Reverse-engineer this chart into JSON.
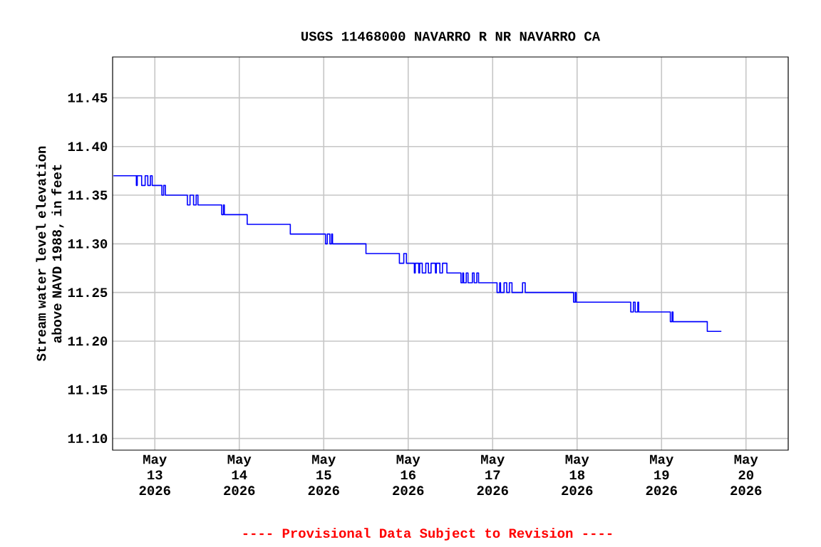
{
  "chart_data": {
    "type": "step",
    "title": "USGS 11468000 NAVARRO R NR NAVARRO CA",
    "ylabel": "Stream water level elevation above NAVD 1988, in feet",
    "annotations": [
      "---- Provisional Data Subject to Revision ----"
    ],
    "x": [
      "2026-05-12T12:15",
      "2026-05-12T18:45",
      "2026-05-12T19:00",
      "2026-05-12T20:15",
      "2026-05-12T21:15",
      "2026-05-12T22:00",
      "2026-05-12T22:45",
      "2026-05-12T23:15",
      "2026-05-13T02:00",
      "2026-05-13T02:30",
      "2026-05-13T03:00",
      "2026-05-13T09:15",
      "2026-05-13T10:00",
      "2026-05-13T11:00",
      "2026-05-13T11:45",
      "2026-05-13T12:15",
      "2026-05-13T19:00",
      "2026-05-13T19:30",
      "2026-05-13T19:45",
      "2026-05-14T02:15",
      "2026-05-14T14:30",
      "2026-05-15T00:30",
      "2026-05-15T01:00",
      "2026-05-15T01:45",
      "2026-05-15T02:15",
      "2026-05-15T02:30",
      "2026-05-15T12:00",
      "2026-05-15T21:30",
      "2026-05-15T22:45",
      "2026-05-15T23:30",
      "2026-05-16T01:45",
      "2026-05-16T02:00",
      "2026-05-16T03:00",
      "2026-05-16T03:15",
      "2026-05-16T04:00",
      "2026-05-16T05:00",
      "2026-05-16T05:45",
      "2026-05-16T06:30",
      "2026-05-16T07:45",
      "2026-05-16T08:00",
      "2026-05-16T09:00",
      "2026-05-16T09:45",
      "2026-05-16T11:00",
      "2026-05-16T15:00",
      "2026-05-16T15:30",
      "2026-05-16T15:45",
      "2026-05-16T16:30",
      "2026-05-16T17:00",
      "2026-05-16T18:15",
      "2026-05-16T18:45",
      "2026-05-16T19:30",
      "2026-05-16T20:00",
      "2026-05-17T01:15",
      "2026-05-17T02:00",
      "2026-05-17T02:15",
      "2026-05-17T03:15",
      "2026-05-17T04:00",
      "2026-05-17T04:45",
      "2026-05-17T05:30",
      "2026-05-17T08:30",
      "2026-05-17T09:15",
      "2026-05-17T23:00",
      "2026-05-17T23:30",
      "2026-05-17T23:45",
      "2026-05-18T15:15",
      "2026-05-18T16:00",
      "2026-05-18T16:30",
      "2026-05-18T17:15",
      "2026-05-18T17:30",
      "2026-05-19T02:30",
      "2026-05-19T03:00",
      "2026-05-19T03:15",
      "2026-05-19T13:00",
      "2026-05-19T17:00"
    ],
    "series": [
      {
        "color": "#0000ff",
        "values": [
          11.37,
          11.36,
          11.37,
          11.36,
          11.37,
          11.36,
          11.37,
          11.36,
          11.35,
          11.36,
          11.35,
          11.34,
          11.35,
          11.34,
          11.35,
          11.34,
          11.33,
          11.34,
          11.33,
          11.32,
          11.31,
          11.3,
          11.31,
          11.3,
          11.31,
          11.3,
          11.29,
          11.28,
          11.29,
          11.28,
          11.27,
          11.28,
          11.27,
          11.28,
          11.27,
          11.28,
          11.27,
          11.28,
          11.27,
          11.28,
          11.27,
          11.28,
          11.27,
          11.26,
          11.27,
          11.26,
          11.27,
          11.26,
          11.27,
          11.26,
          11.27,
          11.26,
          11.25,
          11.26,
          11.25,
          11.26,
          11.25,
          11.26,
          11.25,
          11.26,
          11.25,
          11.24,
          11.25,
          11.24,
          11.23,
          11.24,
          11.23,
          11.24,
          11.23,
          11.22,
          11.23,
          11.22,
          11.21,
          11.21
        ]
      }
    ],
    "xlim": [
      "2026-05-12T12:00",
      "2026-05-20T12:00"
    ],
    "xticks": [
      {
        "value": "2026-05-13",
        "label": "May 13 2026"
      },
      {
        "value": "2026-05-14",
        "label": "May 14 2026"
      },
      {
        "value": "2026-05-15",
        "label": "May 15 2026"
      },
      {
        "value": "2026-05-16",
        "label": "May 16 2026"
      },
      {
        "value": "2026-05-17",
        "label": "May 17 2026"
      },
      {
        "value": "2026-05-18",
        "label": "May 18 2026"
      },
      {
        "value": "2026-05-19",
        "label": "May 19 2026"
      },
      {
        "value": "2026-05-20",
        "label": "May 20 2026"
      }
    ],
    "ylim": [
      11.088,
      11.492
    ],
    "yticks": [
      {
        "value": 11.1,
        "label": "11.10"
      },
      {
        "value": 11.15,
        "label": "11.15"
      },
      {
        "value": 11.2,
        "label": "11.20"
      },
      {
        "value": 11.25,
        "label": "11.25"
      },
      {
        "value": 11.3,
        "label": "11.30"
      },
      {
        "value": 11.35,
        "label": "11.35"
      },
      {
        "value": 11.4,
        "label": "11.40"
      },
      {
        "value": 11.45,
        "label": "11.45"
      }
    ],
    "grid": true
  }
}
